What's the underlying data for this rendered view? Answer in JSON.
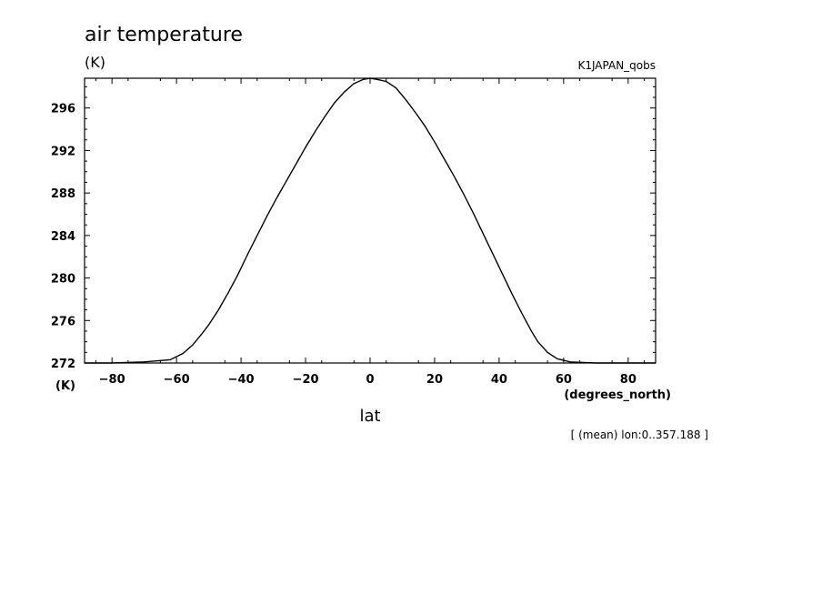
{
  "title": "air temperature",
  "units_top": "(K)",
  "dataset": "K1JAPAN_qobs",
  "units_bottom_left": "(K)",
  "x_units": "(degrees_north)",
  "xlabel": "lat",
  "footnote": "[ (mean) lon:0..357.188 ]",
  "chart_data": {
    "type": "line",
    "title": "air temperature",
    "xlabel": "lat",
    "ylabel": "(K)",
    "xlim": [
      -88.5,
      88.5
    ],
    "ylim": [
      272,
      298.8
    ],
    "xticks": [
      -80,
      -60,
      -40,
      -20,
      0,
      20,
      40,
      60,
      80
    ],
    "xtick_labels": [
      "−80",
      "−60",
      "−40",
      "−20",
      "0",
      "20",
      "40",
      "60",
      "80"
    ],
    "yticks": [
      272,
      276,
      280,
      284,
      288,
      292,
      296
    ],
    "ytick_labels": [
      "272",
      "276",
      "280",
      "284",
      "288",
      "292",
      "296"
    ],
    "grid": false,
    "series": [
      {
        "x": [
          -88.5,
          -80,
          -70,
          -62,
          -58,
          -55,
          -52,
          -50,
          -47,
          -44,
          -41,
          -38,
          -35,
          -32,
          -29,
          -26,
          -23,
          -20,
          -17,
          -14,
          -11,
          -8,
          -5,
          -2,
          0,
          2,
          5,
          8,
          11,
          14,
          17,
          20,
          23,
          26,
          29,
          32,
          35,
          38,
          41,
          44,
          47,
          50,
          52,
          55,
          58,
          62,
          70,
          80,
          88.5
        ],
        "y": [
          272.0,
          272.0,
          272.1,
          272.3,
          272.9,
          273.7,
          274.8,
          275.6,
          277.0,
          278.6,
          280.3,
          282.2,
          284.0,
          285.8,
          287.5,
          289.1,
          290.7,
          292.3,
          293.8,
          295.2,
          296.5,
          297.5,
          298.3,
          298.7,
          298.8,
          298.7,
          298.5,
          297.9,
          296.8,
          295.6,
          294.3,
          292.8,
          291.2,
          289.6,
          287.9,
          286.1,
          284.2,
          282.3,
          280.4,
          278.5,
          276.7,
          275.0,
          274.0,
          273.0,
          272.4,
          272.1,
          272.0,
          272.0,
          272.0
        ]
      }
    ]
  }
}
